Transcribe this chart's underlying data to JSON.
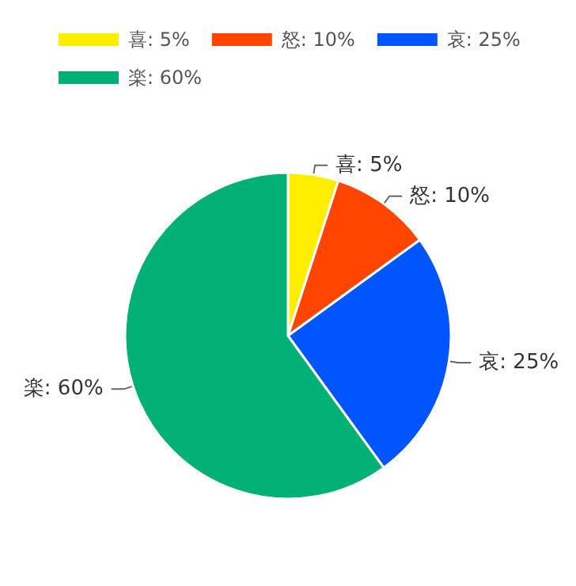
{
  "chart_data": {
    "type": "pie",
    "categories": [
      "喜: 5%",
      "怒: 10%",
      "哀: 25%",
      "楽: 60%"
    ],
    "values": [
      5,
      10,
      25,
      60
    ],
    "colors": [
      "#ffee00",
      "#ff4500",
      "#0055ff",
      "#00b074"
    ],
    "legend": "top left"
  }
}
